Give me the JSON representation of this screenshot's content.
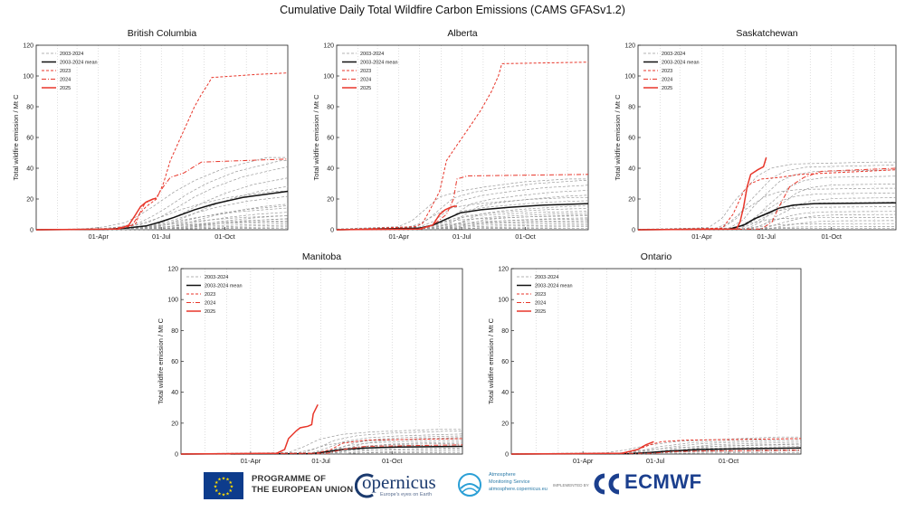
{
  "main_title": "Cumulative Daily Total Wildfire Carbon Emissions (CAMS GFASv1.2)",
  "footer": {
    "eu_line1": "PROGRAMME OF",
    "eu_line2": "THE EUROPEAN UNION",
    "copernicus": "opernicus",
    "copernicus_sub": "Europe's eyes on Earth",
    "cams_line1": "Atmosphere",
    "cams_line2": "Monitoring Service",
    "cams_line3": "atmosphere.copernicus.eu",
    "implemented_by": "IMPLEMENTED BY",
    "ecmwf": "ECMWF"
  },
  "colors": {
    "historical": "#9a9a9a",
    "mean": "#111111",
    "red": "#e8362a",
    "eu_blue": "#0d3c8c",
    "eu_star": "#ffdd00"
  },
  "chart_data": [
    {
      "type": "line",
      "title": "British Columbia",
      "ylabel": "Total wildfire emission / Mt C",
      "ylim": [
        0,
        120
      ],
      "xlim_doy": [
        1,
        365
      ],
      "yticks": [
        0,
        20,
        40,
        60,
        80,
        100,
        120
      ],
      "xticks": [
        {
          "doy": 91,
          "label": "01-Apr"
        },
        {
          "doy": 182,
          "label": "01-Jul"
        },
        {
          "doy": 274,
          "label": "01-Oct"
        }
      ],
      "legend": [
        "2003-2024",
        "2003-2024 mean",
        "2023",
        "2024",
        "2025"
      ],
      "legend_position": "top-left",
      "historical_finals": [
        47,
        45,
        41,
        35,
        30,
        25,
        22,
        18,
        16,
        14,
        12,
        10,
        9,
        8,
        7,
        6,
        5,
        4,
        3,
        2,
        1
      ],
      "series": [
        {
          "name": "2003-2024 mean",
          "style": "mean",
          "x": [
            1,
            100,
            130,
            160,
            180,
            200,
            230,
            260,
            300,
            365
          ],
          "y": [
            0,
            0.3,
            1,
            2.5,
            5,
            8,
            13,
            17,
            21,
            25
          ]
        },
        {
          "name": "2023",
          "style": "red-dashed",
          "x": [
            1,
            120,
            135,
            145,
            150,
            160,
            175,
            185,
            195,
            205,
            210,
            220,
            230,
            240,
            250,
            255,
            320,
            365
          ],
          "y": [
            0,
            0.5,
            2,
            4,
            10,
            15,
            20,
            30,
            45,
            55,
            60,
            70,
            80,
            88,
            95,
            99,
            101,
            102
          ]
        },
        {
          "name": "2024",
          "style": "red-dashdot",
          "x": [
            1,
            110,
            140,
            150,
            158,
            175,
            185,
            195,
            215,
            240,
            365
          ],
          "y": [
            0,
            0.5,
            3,
            10,
            17,
            21,
            28,
            34,
            37,
            44,
            46
          ]
        },
        {
          "name": "2025",
          "style": "red-solid",
          "x": [
            1,
            120,
            135,
            145,
            152,
            160,
            170,
            175
          ],
          "y": [
            0,
            0.5,
            3,
            10,
            15,
            18,
            20,
            20.5
          ]
        }
      ]
    },
    {
      "type": "line",
      "title": "Alberta",
      "ylabel": "Total wildfire emission / Mt C",
      "ylim": [
        0,
        120
      ],
      "xlim_doy": [
        1,
        365
      ],
      "yticks": [
        0,
        20,
        40,
        60,
        80,
        100,
        120
      ],
      "xticks": [
        {
          "doy": 91,
          "label": "01-Apr"
        },
        {
          "doy": 182,
          "label": "01-Jul"
        },
        {
          "doy": 274,
          "label": "01-Oct"
        }
      ],
      "legend": [
        "2003-2024",
        "2003-2024 mean",
        "2023",
        "2024",
        "2025"
      ],
      "legend_position": "top-left",
      "historical_finals": [
        33,
        32,
        29,
        26,
        23,
        21,
        19,
        16,
        14,
        12,
        11,
        10,
        9,
        8,
        7,
        6,
        5,
        4,
        3,
        2,
        1
      ],
      "series": [
        {
          "name": "2003-2024 mean",
          "style": "mean",
          "x": [
            1,
            120,
            140,
            160,
            180,
            210,
            250,
            300,
            365
          ],
          "y": [
            0,
            1,
            3,
            7,
            11,
            13,
            14.5,
            16,
            17
          ]
        },
        {
          "name": "2023",
          "style": "red-dashed",
          "x": [
            1,
            115,
            125,
            135,
            150,
            160,
            175,
            195,
            210,
            225,
            235,
            240,
            365
          ],
          "y": [
            0,
            2,
            4,
            12,
            25,
            45,
            55,
            68,
            78,
            90,
            100,
            108,
            109
          ]
        },
        {
          "name": "2024",
          "style": "red-dashdot",
          "x": [
            1,
            125,
            140,
            160,
            170,
            175,
            190,
            365
          ],
          "y": [
            0,
            0.5,
            3,
            10,
            20,
            33,
            35,
            36
          ]
        },
        {
          "name": "2025",
          "style": "red-solid",
          "x": [
            1,
            120,
            140,
            150,
            158,
            168,
            175
          ],
          "y": [
            0,
            0.5,
            3,
            10,
            13,
            15,
            15.5
          ]
        }
      ]
    },
    {
      "type": "line",
      "title": "Saskatchewan",
      "ylabel": "Total wildfire emission / Mt C",
      "ylim": [
        0,
        120
      ],
      "xlim_doy": [
        1,
        365
      ],
      "yticks": [
        0,
        20,
        40,
        60,
        80,
        100,
        120
      ],
      "xticks": [
        {
          "doy": 91,
          "label": "01-Apr"
        },
        {
          "doy": 182,
          "label": "01-Jul"
        },
        {
          "doy": 274,
          "label": "01-Oct"
        }
      ],
      "legend": [
        "2003-2024",
        "2003-2024 mean",
        "2023",
        "2024",
        "2025"
      ],
      "legend_position": "top-left",
      "historical_finals": [
        44,
        42,
        39,
        35,
        30,
        27,
        24,
        21,
        18,
        15,
        12,
        10,
        8,
        6,
        4,
        2,
        1
      ],
      "series": [
        {
          "name": "2003-2024 mean",
          "style": "mean",
          "x": [
            1,
            130,
            150,
            165,
            180,
            200,
            220,
            250,
            365
          ],
          "y": [
            0,
            0.5,
            3,
            7,
            10,
            14,
            16,
            17,
            17.5
          ]
        },
        {
          "name": "2023",
          "style": "red-dashed",
          "x": [
            1,
            120,
            135,
            150,
            160,
            175,
            200,
            230,
            365
          ],
          "y": [
            0,
            1,
            10,
            25,
            30,
            33,
            34,
            36,
            39
          ]
        },
        {
          "name": "2024",
          "style": "red-dashdot",
          "x": [
            1,
            175,
            190,
            200,
            215,
            235,
            260,
            365
          ],
          "y": [
            0,
            0.5,
            5,
            15,
            28,
            34,
            38,
            40
          ]
        },
        {
          "name": "2025",
          "style": "red-solid",
          "x": [
            1,
            140,
            145,
            150,
            155,
            160,
            170,
            178,
            182
          ],
          "y": [
            0,
            0.5,
            5,
            15,
            28,
            36,
            39,
            41,
            47
          ]
        }
      ]
    },
    {
      "type": "line",
      "title": "Manitoba",
      "ylabel": "Total wildfire emission / Mt C",
      "ylim": [
        0,
        120
      ],
      "xlim_doy": [
        1,
        365
      ],
      "yticks": [
        0,
        20,
        40,
        60,
        80,
        100,
        120
      ],
      "xticks": [
        {
          "doy": 91,
          "label": "01-Apr"
        },
        {
          "doy": 182,
          "label": "01-Jul"
        },
        {
          "doy": 274,
          "label": "01-Oct"
        }
      ],
      "legend": [
        "2003-2024",
        "2003-2024 mean",
        "2023",
        "2024",
        "2025"
      ],
      "legend_position": "top-left",
      "historical_finals": [
        16,
        15,
        13,
        12,
        11,
        10,
        9,
        8,
        7,
        6,
        5,
        4,
        3,
        2,
        1
      ],
      "series": [
        {
          "name": "2003-2024 mean",
          "style": "mean",
          "x": [
            1,
            170,
            190,
            210,
            240,
            280,
            365
          ],
          "y": [
            0,
            0.3,
            1.5,
            3,
            4,
            4.5,
            5
          ]
        },
        {
          "name": "2023",
          "style": "red-dashed",
          "x": [
            1,
            175,
            195,
            210,
            240,
            365
          ],
          "y": [
            0,
            0.5,
            3,
            7,
            9,
            10
          ]
        },
        {
          "name": "2024",
          "style": "red-dashdot",
          "x": [
            1,
            190,
            210,
            240,
            365
          ],
          "y": [
            0,
            0.5,
            3,
            5,
            6
          ]
        },
        {
          "name": "2025",
          "style": "red-solid",
          "x": [
            1,
            125,
            135,
            140,
            150,
            155,
            160,
            165,
            170,
            172,
            178
          ],
          "y": [
            0,
            0.5,
            3,
            10,
            15,
            17,
            17.5,
            18,
            19,
            26,
            32
          ]
        }
      ]
    },
    {
      "type": "line",
      "title": "Ontario",
      "ylabel": "Total wildfire emission / Mt C",
      "ylim": [
        0,
        120
      ],
      "xlim_doy": [
        1,
        365
      ],
      "yticks": [
        0,
        20,
        40,
        60,
        80,
        100,
        120
      ],
      "xticks": [
        {
          "doy": 91,
          "label": "01-Apr"
        },
        {
          "doy": 182,
          "label": "01-Jul"
        },
        {
          "doy": 274,
          "label": "01-Oct"
        }
      ],
      "legend": [
        "2003-2024",
        "2003-2024 mean",
        "2023",
        "2024",
        "2025"
      ],
      "legend_position": "top-left",
      "historical_finals": [
        11,
        10,
        9,
        8,
        7,
        6,
        5,
        4,
        3,
        2,
        1
      ],
      "series": [
        {
          "name": "2003-2024 mean",
          "style": "mean",
          "x": [
            1,
            150,
            175,
            200,
            240,
            300,
            365
          ],
          "y": [
            0,
            0.3,
            1,
            2,
            3,
            3.5,
            4
          ]
        },
        {
          "name": "2023",
          "style": "red-dashed",
          "x": [
            1,
            140,
            160,
            175,
            190,
            220,
            365
          ],
          "y": [
            0,
            0.5,
            3,
            6,
            8,
            9,
            10
          ]
        },
        {
          "name": "2024",
          "style": "red-dashdot",
          "x": [
            1,
            180,
            200,
            240,
            365
          ],
          "y": [
            0,
            0.5,
            1.5,
            2,
            2.5
          ]
        },
        {
          "name": "2025",
          "style": "red-solid",
          "x": [
            1,
            140,
            160,
            170,
            180
          ],
          "y": [
            0,
            0.5,
            3,
            6,
            8
          ]
        }
      ]
    }
  ]
}
